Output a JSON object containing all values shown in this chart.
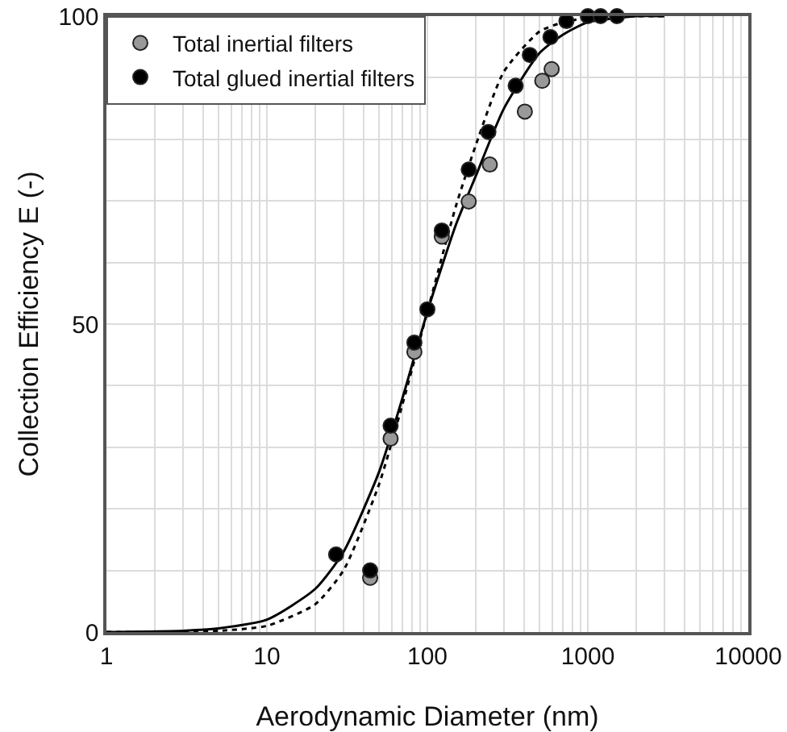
{
  "chart_data": {
    "type": "scatter",
    "xlabel": "Aerodynamic Diameter (nm)",
    "ylabel": "Collection Efficiency E (-)",
    "log": "x",
    "grid": true,
    "legend": "top left",
    "xlim": [
      1,
      10000
    ],
    "ylim": [
      0,
      100
    ],
    "xticks": [
      1,
      {
        "value": 2,
        "label": null
      },
      {
        "value": 3,
        "label": null
      },
      {
        "value": 4,
        "label": null
      },
      {
        "value": 5,
        "label": null
      },
      {
        "value": 6,
        "label": null
      },
      {
        "value": 7,
        "label": null
      },
      {
        "value": 8,
        "label": null
      },
      {
        "value": 9,
        "label": null
      },
      10,
      {
        "value": 20,
        "label": null
      },
      {
        "value": 30,
        "label": null
      },
      {
        "value": 40,
        "label": null
      },
      {
        "value": 50,
        "label": null
      },
      {
        "value": 60,
        "label": null
      },
      {
        "value": 70,
        "label": null
      },
      {
        "value": 80,
        "label": null
      },
      {
        "value": 90,
        "label": null
      },
      100,
      {
        "value": 200,
        "label": null
      },
      {
        "value": 300,
        "label": null
      },
      {
        "value": 400,
        "label": null
      },
      {
        "value": 500,
        "label": null
      },
      {
        "value": 600,
        "label": null
      },
      {
        "value": 700,
        "label": null
      },
      {
        "value": 800,
        "label": null
      },
      {
        "value": 900,
        "label": null
      },
      1000,
      {
        "value": 2000,
        "label": null
      },
      {
        "value": 3000,
        "label": null
      },
      {
        "value": 4000,
        "label": null
      },
      {
        "value": 5000,
        "label": null
      },
      {
        "value": 6000,
        "label": null
      },
      {
        "value": 7000,
        "label": null
      },
      {
        "value": 8000,
        "label": null
      },
      {
        "value": 9000,
        "label": null
      },
      10000
    ],
    "yticks": [
      0,
      {
        "value": 10,
        "label": null
      },
      {
        "value": 20,
        "label": null
      },
      {
        "value": 30,
        "label": null
      },
      {
        "value": 40,
        "label": null
      },
      50,
      {
        "value": 60,
        "label": null
      },
      {
        "value": 70,
        "label": null
      },
      {
        "value": 80,
        "label": null
      },
      {
        "value": 90,
        "label": null
      },
      100
    ],
    "series": [
      {
        "name": "Total inertial filters",
        "color": "#999999",
        "marker": "circle",
        "x": [
          44,
          59,
          83,
          100,
          123,
          181,
          245,
          405,
          520,
          595
        ],
        "values": [
          8.8,
          31.4,
          45.5,
          null,
          64.2,
          69.9,
          75.9,
          84.5,
          89.5,
          91.4
        ]
      },
      {
        "name": "Total glued inertial filters",
        "color": "#000000",
        "marker": "circle",
        "x": [
          27,
          44,
          59,
          83,
          100,
          123,
          181,
          240,
          355,
          435,
          585,
          735,
          1000,
          1200,
          1520
        ],
        "values": [
          12.6,
          10,
          33.5,
          47,
          52.4,
          65.2,
          75.1,
          81.2,
          88.7,
          93.7,
          96.6,
          99.2,
          100,
          100,
          100
        ]
      },
      {
        "type": "line",
        "line_style": "solid",
        "marker": "none",
        "color": "#000000",
        "x": [
          1,
          3,
          5,
          10,
          20,
          30,
          50,
          70,
          100,
          150,
          200,
          300,
          500,
          700,
          1000,
          2000,
          3000
        ],
        "values": [
          0,
          0.2,
          0.6,
          2,
          7,
          13,
          26,
          38,
          52,
          66,
          74,
          85,
          94,
          97,
          99,
          100,
          100
        ]
      },
      {
        "type": "line",
        "line_style": "dotted",
        "marker": "none",
        "color": "#000000",
        "x": [
          1,
          3,
          5,
          10,
          20,
          30,
          50,
          70,
          100,
          150,
          200,
          300,
          500,
          700,
          1000,
          2000,
          3000
        ],
        "values": [
          0,
          0,
          0.2,
          1,
          4.5,
          10,
          24,
          37,
          52,
          69,
          79,
          91,
          97.5,
          99,
          99.7,
          100,
          100
        ]
      }
    ]
  }
}
